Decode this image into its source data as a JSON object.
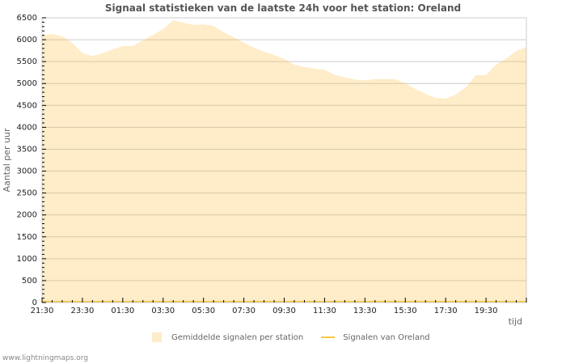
{
  "title": "Signaal statistieken van de laatste 24h voor het station: Oreland",
  "footer": "www.lightningmaps.org",
  "legend": {
    "area_label": "Gemiddelde signalen per station",
    "line_label": "Signalen van Oreland"
  },
  "colors": {
    "area_fill": "#ffecc8",
    "line": "#f5c842",
    "grid": "#cccccc",
    "grid_lower": "#d9c9a8"
  },
  "chart_data": {
    "type": "area",
    "title": "Signaal statistieken van de laatste 24h voor het station: Oreland",
    "xlabel": "tijd",
    "ylabel": "Aantal per uur",
    "ylim": [
      0,
      6500
    ],
    "yticks": [
      0,
      500,
      1000,
      1500,
      2000,
      2500,
      3000,
      3500,
      4000,
      4500,
      5000,
      5500,
      6000,
      6500
    ],
    "xtick_labels": [
      "21:30",
      "23:30",
      "01:30",
      "03:30",
      "05:30",
      "07:30",
      "09:30",
      "11:30",
      "13:30",
      "15:30",
      "17:30",
      "19:30"
    ],
    "grid": true,
    "legend_position": "bottom",
    "x": [
      "21:30",
      "22:00",
      "22:30",
      "23:00",
      "23:30",
      "00:00",
      "00:30",
      "01:00",
      "01:30",
      "02:00",
      "02:30",
      "03:00",
      "03:30",
      "04:00",
      "04:30",
      "05:00",
      "05:30",
      "06:00",
      "06:30",
      "07:00",
      "07:30",
      "08:00",
      "08:30",
      "09:00",
      "09:30",
      "10:00",
      "10:30",
      "11:00",
      "11:30",
      "12:00",
      "12:30",
      "13:00",
      "13:30",
      "14:00",
      "14:30",
      "15:00",
      "15:30",
      "16:00",
      "16:30",
      "17:00",
      "17:30",
      "18:00",
      "18:30",
      "19:00",
      "19:30",
      "20:00",
      "20:30",
      "21:00",
      "21:30"
    ],
    "series": [
      {
        "name": "Gemiddelde signalen per station",
        "type": "area",
        "values": [
          6095,
          6130,
          6075,
          5930,
          5690,
          5630,
          5690,
          5780,
          5855,
          5855,
          5985,
          6110,
          6240,
          6445,
          6390,
          6335,
          6350,
          6315,
          6170,
          6055,
          5930,
          5815,
          5725,
          5650,
          5560,
          5430,
          5375,
          5340,
          5310,
          5200,
          5135,
          5090,
          5070,
          5100,
          5100,
          5100,
          5005,
          4875,
          4765,
          4670,
          4655,
          4745,
          4910,
          5190,
          5190,
          5430,
          5575,
          5740,
          5835
        ]
      },
      {
        "name": "Signalen van Oreland",
        "type": "line",
        "values": [
          0,
          0,
          0,
          0,
          0,
          0,
          0,
          0,
          0,
          0,
          0,
          0,
          0,
          0,
          0,
          0,
          0,
          0,
          0,
          0,
          0,
          0,
          0,
          0,
          0,
          0,
          0,
          0,
          0,
          0,
          0,
          0,
          0,
          0,
          0,
          0,
          0,
          0,
          0,
          0,
          0,
          0,
          0,
          0,
          0,
          0,
          0,
          0,
          0
        ]
      }
    ]
  }
}
